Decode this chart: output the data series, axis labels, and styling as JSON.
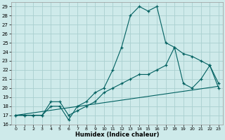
{
  "xlabel": "Humidex (Indice chaleur)",
  "background_color": "#ceeaea",
  "grid_color": "#aacfcf",
  "line_color": "#006060",
  "xlim": [
    -0.5,
    23.5
  ],
  "ylim": [
    16,
    29.5
  ],
  "xticks": [
    0,
    1,
    2,
    3,
    4,
    5,
    6,
    7,
    8,
    9,
    10,
    11,
    12,
    13,
    14,
    15,
    16,
    17,
    18,
    19,
    20,
    21,
    22,
    23
  ],
  "yticks": [
    16,
    17,
    18,
    19,
    20,
    21,
    22,
    23,
    24,
    25,
    26,
    27,
    28,
    29
  ],
  "series1_x": [
    0,
    1,
    2,
    3,
    4,
    5,
    6,
    7,
    8,
    9,
    10,
    11,
    12,
    13,
    14,
    15,
    16,
    17,
    18,
    19,
    20,
    21,
    22,
    23
  ],
  "series1_y": [
    17,
    17,
    17,
    17,
    18,
    18,
    16.5,
    18,
    18.5,
    19.5,
    20,
    22,
    24.5,
    28,
    29,
    28.5,
    29,
    25,
    24.5,
    20.5,
    20,
    21,
    22.5,
    20
  ],
  "series2_x": [
    0,
    1,
    2,
    3,
    4,
    5,
    6,
    7,
    8,
    9,
    10,
    11,
    12,
    13,
    14,
    15,
    16,
    17,
    18,
    19,
    20,
    21,
    22,
    23
  ],
  "series2_y": [
    17,
    17,
    17,
    17,
    18.5,
    18.5,
    17,
    17.5,
    18,
    18.5,
    19.5,
    20,
    20.5,
    21,
    21.5,
    21.5,
    22,
    22.5,
    24.5,
    23.8,
    23.5,
    23,
    22.5,
    20.5
  ],
  "series3_x": [
    0,
    23
  ],
  "series3_y": [
    17,
    20.2
  ]
}
